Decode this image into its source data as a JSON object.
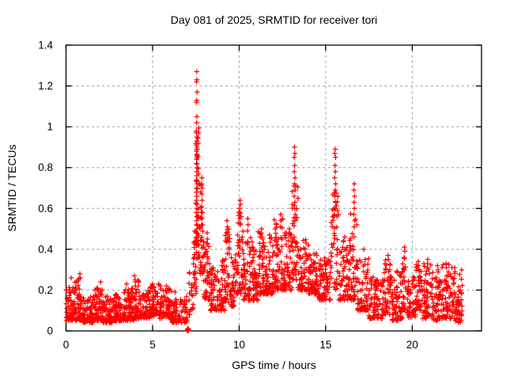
{
  "colors": {
    "marker": "#ff0000",
    "grid": "#a0a0a0",
    "axis": "#000000",
    "background": "#ffffff",
    "text": "#000000"
  },
  "chart_data": {
    "type": "scatter",
    "title": "Day 081 of 2025, SRMTID for receiver tori",
    "xlabel": "GPS time / hours",
    "ylabel": "SRMTID / TECUs",
    "xlim": [
      0,
      24
    ],
    "ylim": [
      0,
      1.4
    ],
    "grid": true,
    "legend": null,
    "marker": "plus",
    "marker_color": "#ff0000",
    "xticks": [
      {
        "v": 0,
        "label": "0"
      },
      {
        "v": 5,
        "label": "5"
      },
      {
        "v": 10,
        "label": "10"
      },
      {
        "v": 15,
        "label": "15"
      },
      {
        "v": 20,
        "label": "20"
      }
    ],
    "yticks": [
      {
        "v": 0,
        "label": "0"
      },
      {
        "v": 0.2,
        "label": "0.2"
      },
      {
        "v": 0.4,
        "label": "0.4"
      },
      {
        "v": 0.6,
        "label": "0.6"
      },
      {
        "v": 0.8,
        "label": "0.8"
      },
      {
        "v": 1,
        "label": "1"
      },
      {
        "v": 1.2,
        "label": "1.2"
      },
      {
        "v": 1.4,
        "label": "1.4"
      }
    ],
    "peaks": [
      {
        "x": 7.55,
        "y": 1.27,
        "note": "main spike"
      },
      {
        "x": 7.85,
        "y": 0.75
      },
      {
        "x": 10.05,
        "y": 0.64
      },
      {
        "x": 13.2,
        "y": 0.9
      },
      {
        "x": 15.55,
        "y": 0.89
      },
      {
        "x": 16.65,
        "y": 0.72
      },
      {
        "x": 19.55,
        "y": 0.41
      },
      {
        "x": 7.0,
        "y": 0.0,
        "note": "cluster at zero"
      }
    ],
    "scatter_points": [
      [
        7.55,
        1.27
      ],
      [
        7.56,
        1.23
      ],
      [
        7.54,
        1.22
      ],
      [
        7.57,
        1.17
      ],
      [
        7.55,
        1.13
      ],
      [
        7.53,
        1.12
      ],
      [
        7.56,
        1.05
      ],
      [
        7.55,
        1.02
      ],
      [
        7.54,
        0.97
      ],
      [
        7.57,
        0.95
      ],
      [
        7.55,
        0.93
      ],
      [
        7.53,
        0.91
      ],
      [
        7.56,
        0.9
      ],
      [
        7.58,
        0.89
      ],
      [
        7.54,
        0.88
      ],
      [
        7.56,
        0.86
      ],
      [
        7.55,
        0.84
      ],
      [
        7.53,
        0.82
      ],
      [
        7.57,
        0.8
      ],
      [
        7.55,
        0.78
      ],
      [
        7.56,
        0.76
      ],
      [
        7.54,
        0.74
      ],
      [
        7.58,
        0.72
      ],
      [
        7.55,
        0.7
      ],
      [
        7.53,
        0.68
      ],
      [
        7.56,
        0.66
      ],
      [
        7.54,
        0.64
      ],
      [
        7.57,
        0.62
      ],
      [
        7.55,
        0.6
      ],
      [
        7.52,
        0.58
      ],
      [
        7.56,
        0.56
      ],
      [
        7.54,
        0.54
      ],
      [
        7.55,
        0.52
      ],
      [
        7.57,
        0.5
      ],
      [
        7.53,
        0.48
      ],
      [
        7.55,
        0.46
      ],
      [
        7.56,
        0.44
      ],
      [
        7.54,
        0.42
      ],
      [
        7.85,
        0.75
      ],
      [
        7.83,
        0.72
      ],
      [
        7.87,
        0.7
      ],
      [
        7.84,
        0.67
      ],
      [
        7.86,
        0.64
      ],
      [
        7.82,
        0.61
      ],
      [
        7.88,
        0.58
      ],
      [
        7.85,
        0.55
      ],
      [
        7.83,
        0.52
      ],
      [
        8.15,
        0.48
      ],
      [
        8.17,
        0.45
      ],
      [
        8.13,
        0.43
      ],
      [
        9.3,
        0.54
      ],
      [
        9.32,
        0.51
      ],
      [
        9.28,
        0.48
      ],
      [
        9.31,
        0.45
      ],
      [
        10.05,
        0.64
      ],
      [
        10.07,
        0.62
      ],
      [
        10.03,
        0.6
      ],
      [
        10.06,
        0.58
      ],
      [
        10.04,
        0.55
      ],
      [
        10.08,
        0.52
      ],
      [
        10.5,
        0.55
      ],
      [
        10.52,
        0.52
      ],
      [
        10.48,
        0.49
      ],
      [
        11.3,
        0.5
      ],
      [
        11.28,
        0.48
      ],
      [
        11.32,
        0.46
      ],
      [
        11.75,
        0.47
      ],
      [
        12.4,
        0.57
      ],
      [
        12.42,
        0.54
      ],
      [
        12.38,
        0.51
      ],
      [
        12.9,
        0.5
      ],
      [
        12.92,
        0.48
      ],
      [
        13.2,
        0.9
      ],
      [
        13.22,
        0.87
      ],
      [
        13.18,
        0.85
      ],
      [
        13.21,
        0.81
      ],
      [
        13.19,
        0.78
      ],
      [
        13.23,
        0.75
      ],
      [
        13.2,
        0.72
      ],
      [
        13.24,
        0.69
      ],
      [
        13.18,
        0.66
      ],
      [
        13.22,
        0.63
      ],
      [
        13.2,
        0.6
      ],
      [
        13.25,
        0.57
      ],
      [
        13.17,
        0.54
      ],
      [
        14.0,
        0.42
      ],
      [
        15.55,
        0.89
      ],
      [
        15.53,
        0.87
      ],
      [
        15.57,
        0.85
      ],
      [
        15.54,
        0.81
      ],
      [
        15.56,
        0.78
      ],
      [
        15.52,
        0.75
      ],
      [
        15.58,
        0.72
      ],
      [
        15.55,
        0.69
      ],
      [
        15.53,
        0.66
      ],
      [
        15.57,
        0.63
      ],
      [
        15.55,
        0.6
      ],
      [
        15.5,
        0.57
      ],
      [
        16.1,
        0.46
      ],
      [
        16.65,
        0.72
      ],
      [
        16.63,
        0.69
      ],
      [
        16.67,
        0.66
      ],
      [
        16.64,
        0.63
      ],
      [
        16.66,
        0.6
      ],
      [
        16.62,
        0.57
      ],
      [
        16.68,
        0.54
      ],
      [
        16.65,
        0.51
      ],
      [
        17.2,
        0.4
      ],
      [
        18.6,
        0.37
      ],
      [
        18.62,
        0.35
      ],
      [
        19.55,
        0.41
      ],
      [
        19.57,
        0.39
      ],
      [
        19.53,
        0.36
      ],
      [
        20.35,
        0.34
      ],
      [
        20.37,
        0.32
      ],
      [
        20.9,
        0.35
      ],
      [
        20.88,
        0.33
      ],
      [
        21.45,
        0.32
      ],
      [
        21.95,
        0.33
      ],
      [
        21.97,
        0.31
      ],
      [
        22.45,
        0.31
      ],
      [
        22.47,
        0.29
      ],
      [
        0.3,
        0.26
      ],
      [
        0.8,
        0.28
      ],
      [
        0.82,
        0.26
      ],
      [
        2.0,
        0.24
      ],
      [
        3.5,
        0.23
      ],
      [
        3.95,
        0.27
      ],
      [
        4.0,
        0.25
      ],
      [
        5.0,
        0.23
      ],
      [
        5.45,
        0.22
      ],
      [
        5.8,
        0.22
      ],
      [
        6.3,
        0.19
      ]
    ],
    "density_bands": [
      [
        0.0,
        0.5,
        0.05,
        0.22,
        60
      ],
      [
        0.5,
        1.0,
        0.05,
        0.26,
        60
      ],
      [
        1.0,
        1.6,
        0.04,
        0.17,
        70
      ],
      [
        1.6,
        2.1,
        0.05,
        0.21,
        60
      ],
      [
        2.1,
        2.7,
        0.04,
        0.17,
        70
      ],
      [
        2.7,
        3.3,
        0.05,
        0.18,
        70
      ],
      [
        3.3,
        3.9,
        0.05,
        0.21,
        70
      ],
      [
        3.9,
        4.2,
        0.06,
        0.26,
        40
      ],
      [
        4.2,
        4.8,
        0.06,
        0.2,
        60
      ],
      [
        4.8,
        5.4,
        0.07,
        0.23,
        60
      ],
      [
        5.4,
        6.1,
        0.06,
        0.21,
        70
      ],
      [
        6.1,
        6.6,
        0.04,
        0.16,
        45
      ],
      [
        6.6,
        7.0,
        0.04,
        0.17,
        30
      ],
      [
        7.0,
        7.08,
        0.0,
        0.015,
        14
      ],
      [
        7.1,
        7.35,
        0.08,
        0.3,
        20
      ],
      [
        7.35,
        7.52,
        0.18,
        0.5,
        25
      ],
      [
        7.5,
        7.68,
        0.35,
        1.0,
        40
      ],
      [
        7.7,
        7.95,
        0.28,
        0.72,
        35
      ],
      [
        7.95,
        8.3,
        0.15,
        0.45,
        40
      ],
      [
        8.3,
        8.9,
        0.1,
        0.32,
        60
      ],
      [
        8.9,
        9.2,
        0.1,
        0.35,
        35
      ],
      [
        9.2,
        9.45,
        0.14,
        0.5,
        30
      ],
      [
        9.45,
        9.8,
        0.12,
        0.36,
        40
      ],
      [
        9.8,
        10.25,
        0.18,
        0.6,
        50
      ],
      [
        10.25,
        10.7,
        0.15,
        0.5,
        50
      ],
      [
        10.7,
        11.1,
        0.15,
        0.45,
        48
      ],
      [
        11.1,
        11.5,
        0.18,
        0.52,
        48
      ],
      [
        11.5,
        12.0,
        0.18,
        0.46,
        55
      ],
      [
        12.0,
        12.55,
        0.2,
        0.55,
        60
      ],
      [
        12.55,
        13.05,
        0.2,
        0.5,
        55
      ],
      [
        13.05,
        13.4,
        0.25,
        0.72,
        42
      ],
      [
        13.4,
        13.9,
        0.2,
        0.46,
        55
      ],
      [
        13.9,
        14.6,
        0.18,
        0.38,
        75
      ],
      [
        14.6,
        15.3,
        0.15,
        0.36,
        75
      ],
      [
        15.3,
        15.75,
        0.2,
        0.7,
        45
      ],
      [
        15.75,
        16.4,
        0.15,
        0.45,
        65
      ],
      [
        16.4,
        16.85,
        0.15,
        0.58,
        45
      ],
      [
        16.85,
        17.5,
        0.1,
        0.36,
        65
      ],
      [
        17.5,
        18.3,
        0.06,
        0.28,
        80
      ],
      [
        18.3,
        18.8,
        0.08,
        0.36,
        50
      ],
      [
        18.8,
        19.45,
        0.05,
        0.3,
        65
      ],
      [
        19.45,
        19.7,
        0.1,
        0.38,
        25
      ],
      [
        19.7,
        20.2,
        0.06,
        0.28,
        50
      ],
      [
        20.2,
        20.55,
        0.1,
        0.34,
        40
      ],
      [
        20.55,
        21.1,
        0.06,
        0.33,
        55
      ],
      [
        21.1,
        21.7,
        0.05,
        0.3,
        60
      ],
      [
        21.7,
        22.3,
        0.06,
        0.33,
        60
      ],
      [
        22.3,
        22.9,
        0.04,
        0.3,
        65
      ]
    ],
    "seed": 20250081
  }
}
